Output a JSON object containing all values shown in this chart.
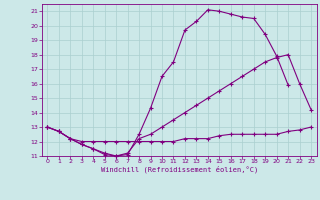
{
  "xlabel": "Windchill (Refroidissement éolien,°C)",
  "background_color": "#cce8e8",
  "line_color": "#800080",
  "grid_color": "#aacfcf",
  "xmin": 0,
  "xmax": 23,
  "ymin": 11,
  "ymax": 21,
  "s1_x": [
    0,
    1,
    2,
    3,
    4,
    5,
    6,
    7,
    8,
    9,
    10,
    11,
    12,
    13,
    14,
    15,
    16,
    17,
    18,
    19,
    20,
    21
  ],
  "s1_y": [
    13.0,
    12.7,
    12.2,
    11.8,
    11.5,
    11.1,
    11.0,
    11.1,
    12.5,
    14.3,
    16.5,
    17.5,
    19.7,
    20.3,
    21.1,
    21.0,
    20.8,
    20.6,
    20.5,
    19.4,
    17.9,
    15.9
  ],
  "s2_x": [
    0,
    1,
    2,
    3,
    4,
    5,
    6,
    7,
    8,
    9,
    10,
    11,
    12,
    13,
    14,
    15,
    16,
    17,
    18,
    19,
    20,
    21,
    22,
    23
  ],
  "s2_y": [
    13.0,
    12.7,
    12.2,
    11.8,
    11.5,
    11.2,
    11.0,
    11.2,
    12.2,
    12.5,
    13.0,
    13.5,
    14.0,
    14.5,
    15.0,
    15.5,
    16.0,
    16.5,
    17.0,
    17.5,
    17.8,
    18.0,
    16.0,
    14.2
  ],
  "s3_x": [
    0,
    1,
    2,
    3,
    4,
    5,
    6,
    7,
    8,
    9,
    10,
    11,
    12,
    13,
    14,
    15,
    16,
    17,
    18,
    19,
    20,
    21,
    22,
    23
  ],
  "s3_y": [
    13.0,
    12.7,
    12.2,
    12.0,
    12.0,
    12.0,
    12.0,
    12.0,
    12.0,
    12.0,
    12.0,
    12.0,
    12.2,
    12.2,
    12.2,
    12.4,
    12.5,
    12.5,
    12.5,
    12.5,
    12.5,
    12.7,
    12.8,
    13.0
  ]
}
